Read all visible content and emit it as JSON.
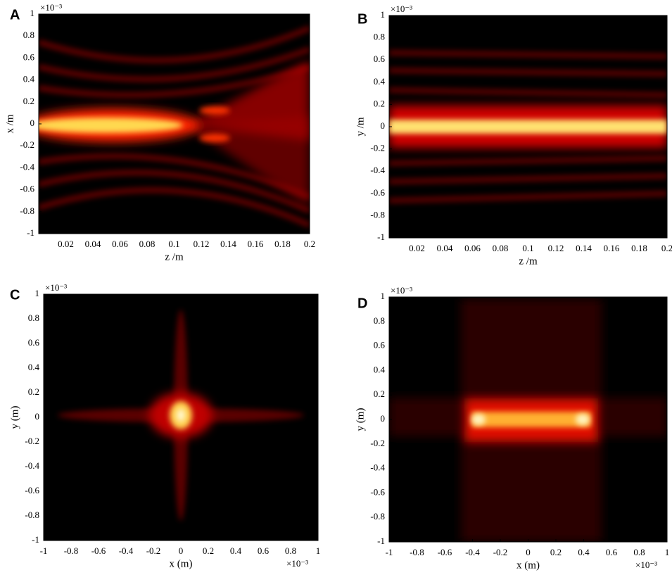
{
  "chart_data": [
    {
      "type": "heatmap",
      "panel_label": "A",
      "xlabel": "z /m",
      "ylabel": "x /m",
      "y_exponent": "×10⁻³",
      "xlim": [
        0,
        0.2
      ],
      "xticks": [
        0.02,
        0.04,
        0.06,
        0.08,
        0.1,
        0.12,
        0.14,
        0.16,
        0.18,
        0.2
      ],
      "ylim": [
        -1,
        1
      ],
      "yticks": [
        -1,
        -0.8,
        -0.6,
        -0.4,
        -0.2,
        0,
        0.2,
        0.4,
        0.6,
        0.8,
        1
      ]
    },
    {
      "type": "heatmap",
      "panel_label": "B",
      "xlabel": "z /m",
      "ylabel": "y /m",
      "y_exponent": "×10⁻³",
      "xlim": [
        0,
        0.2
      ],
      "xticks": [
        0.02,
        0.04,
        0.06,
        0.08,
        0.1,
        0.12,
        0.14,
        0.16,
        0.18,
        0.2
      ],
      "ylim": [
        -1,
        1
      ],
      "yticks": [
        -1,
        -0.8,
        -0.6,
        -0.4,
        -0.2,
        0,
        0.2,
        0.4,
        0.6,
        0.8,
        1
      ]
    },
    {
      "type": "heatmap",
      "panel_label": "C",
      "xlabel": "x (m)",
      "ylabel": "y (m)",
      "y_exponent": "×10⁻³",
      "x_exponent": "×10⁻³",
      "xlim": [
        -1,
        1
      ],
      "xticks": [
        -1,
        -0.8,
        -0.6,
        -0.4,
        -0.2,
        0,
        0.2,
        0.4,
        0.6,
        0.8,
        1
      ],
      "ylim": [
        -1,
        1
      ],
      "yticks": [
        -1,
        -0.8,
        -0.6,
        -0.4,
        -0.2,
        0,
        0.2,
        0.4,
        0.6,
        0.8,
        1
      ]
    },
    {
      "type": "heatmap",
      "panel_label": "D",
      "xlabel": "x (m)",
      "ylabel": "y (m)",
      "y_exponent": "×10⁻³",
      "x_exponent": "×10⁻³",
      "xlim": [
        -1,
        1
      ],
      "xticks": [
        -1,
        -0.8,
        -0.6,
        -0.4,
        -0.2,
        0,
        0.2,
        0.4,
        0.6,
        0.8,
        1
      ],
      "ylim": [
        -1,
        1
      ],
      "yticks": [
        -1,
        -0.8,
        -0.6,
        -0.4,
        -0.2,
        0,
        0.2,
        0.4,
        0.6,
        0.8,
        1
      ]
    }
  ]
}
